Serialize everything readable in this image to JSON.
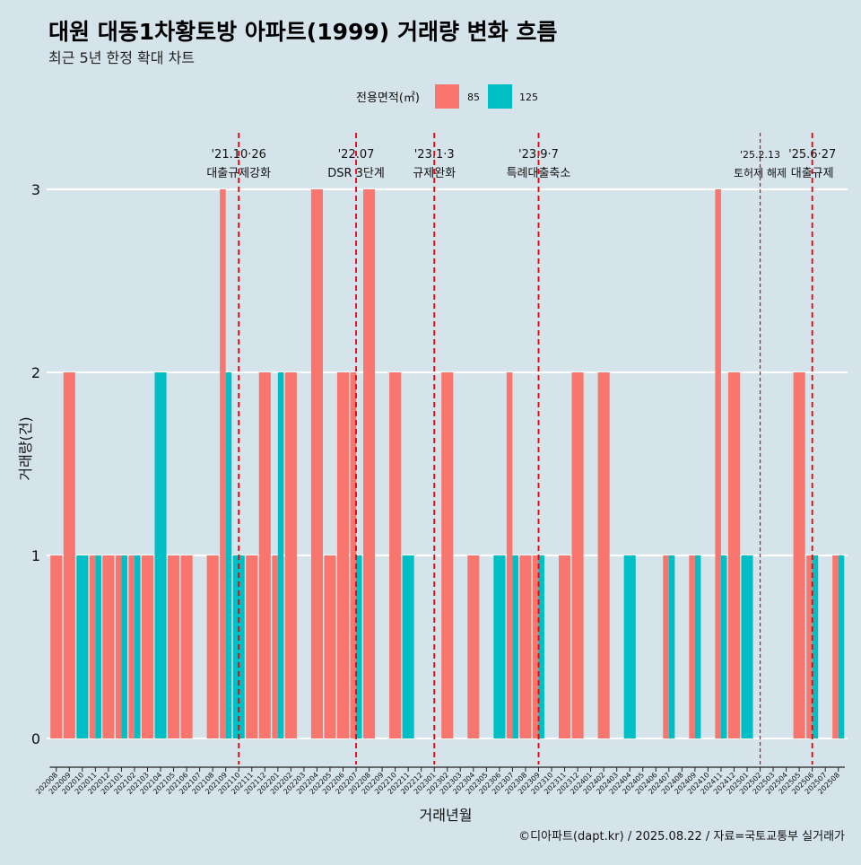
{
  "title": "대원 대동1차황토방 아파트(1999) 거래량 변화 흐름",
  "subtitle": "최근 5년 한정 확대 차트",
  "legend": {
    "title": "전용면적(㎡)",
    "position": "top"
  },
  "ylabel": "거래량(건)",
  "xlabel": "거래년월",
  "caption": "©디아파트(dapt.kr) / 2025.08.22 / 자료=국토교통부 실거래가",
  "colors": {
    "background": "#d5e3ea",
    "s85": "#f8766d",
    "s125": "#00bfc4",
    "vline": "#e8000b",
    "grid": "#ffffff"
  },
  "chart_data": {
    "type": "bar",
    "barmode": "dodge",
    "ylim": [
      0,
      3
    ],
    "yticks": [
      0,
      1,
      2,
      3
    ],
    "grid": true,
    "categories": [
      "202008",
      "202009",
      "202010",
      "202011",
      "202012",
      "202101",
      "202102",
      "202103",
      "202104",
      "202105",
      "202106",
      "202107",
      "202108",
      "202109",
      "202110",
      "202111",
      "202112",
      "202201",
      "202202",
      "202203",
      "202204",
      "202205",
      "202206",
      "202207",
      "202208",
      "202209",
      "202210",
      "202211",
      "202212",
      "202301",
      "202302",
      "202303",
      "202304",
      "202305",
      "202306",
      "202307",
      "202308",
      "202309",
      "202310",
      "202311",
      "202312",
      "202401",
      "202402",
      "202403",
      "202404",
      "202405",
      "202406",
      "202407",
      "202408",
      "202409",
      "202410",
      "202411",
      "202412",
      "202501",
      "202502",
      "202503",
      "202504",
      "202505",
      "202506",
      "202507",
      "202508"
    ],
    "series": [
      {
        "name": "85",
        "values": [
          1,
          2,
          0,
          1,
          1,
          1,
          1,
          1,
          0,
          1,
          1,
          0,
          1,
          3,
          0,
          1,
          2,
          1,
          2,
          0,
          3,
          1,
          2,
          2,
          3,
          0,
          2,
          0,
          0,
          0,
          2,
          0,
          1,
          0,
          0,
          2,
          1,
          1,
          0,
          1,
          2,
          0,
          2,
          0,
          0,
          0,
          0,
          1,
          0,
          1,
          0,
          3,
          2,
          0,
          0,
          0,
          0,
          2,
          1,
          0,
          1
        ]
      },
      {
        "name": "125",
        "values": [
          0,
          0,
          1,
          1,
          0,
          1,
          1,
          0,
          2,
          0,
          0,
          0,
          0,
          2,
          1,
          0,
          0,
          2,
          0,
          0,
          0,
          0,
          0,
          1,
          0,
          0,
          0,
          1,
          0,
          0,
          0,
          0,
          0,
          0,
          1,
          1,
          0,
          1,
          0,
          0,
          0,
          0,
          0,
          0,
          1,
          0,
          0,
          1,
          0,
          1,
          0,
          1,
          0,
          1,
          0,
          0,
          0,
          0,
          1,
          0,
          1
        ]
      }
    ],
    "annotations": [
      {
        "category": "202110",
        "date": "'21.10·26",
        "label": "대출규제강화",
        "style": "dashed"
      },
      {
        "category": "202207",
        "date": "'22.07",
        "label": "DSR 3단계",
        "style": "dashed"
      },
      {
        "category": "202301",
        "date": "'23.1·3",
        "label": "규제완화",
        "style": "dashed"
      },
      {
        "category": "202309",
        "date": "'23.9·7",
        "label": "특례대출축소",
        "style": "dashed"
      },
      {
        "category": "202502",
        "date": "'25.2.13",
        "label": "토허제 해제",
        "style": "thin"
      },
      {
        "category": "202506",
        "date": "'25.6·27",
        "label": "대출규제",
        "style": "dashed"
      }
    ]
  }
}
